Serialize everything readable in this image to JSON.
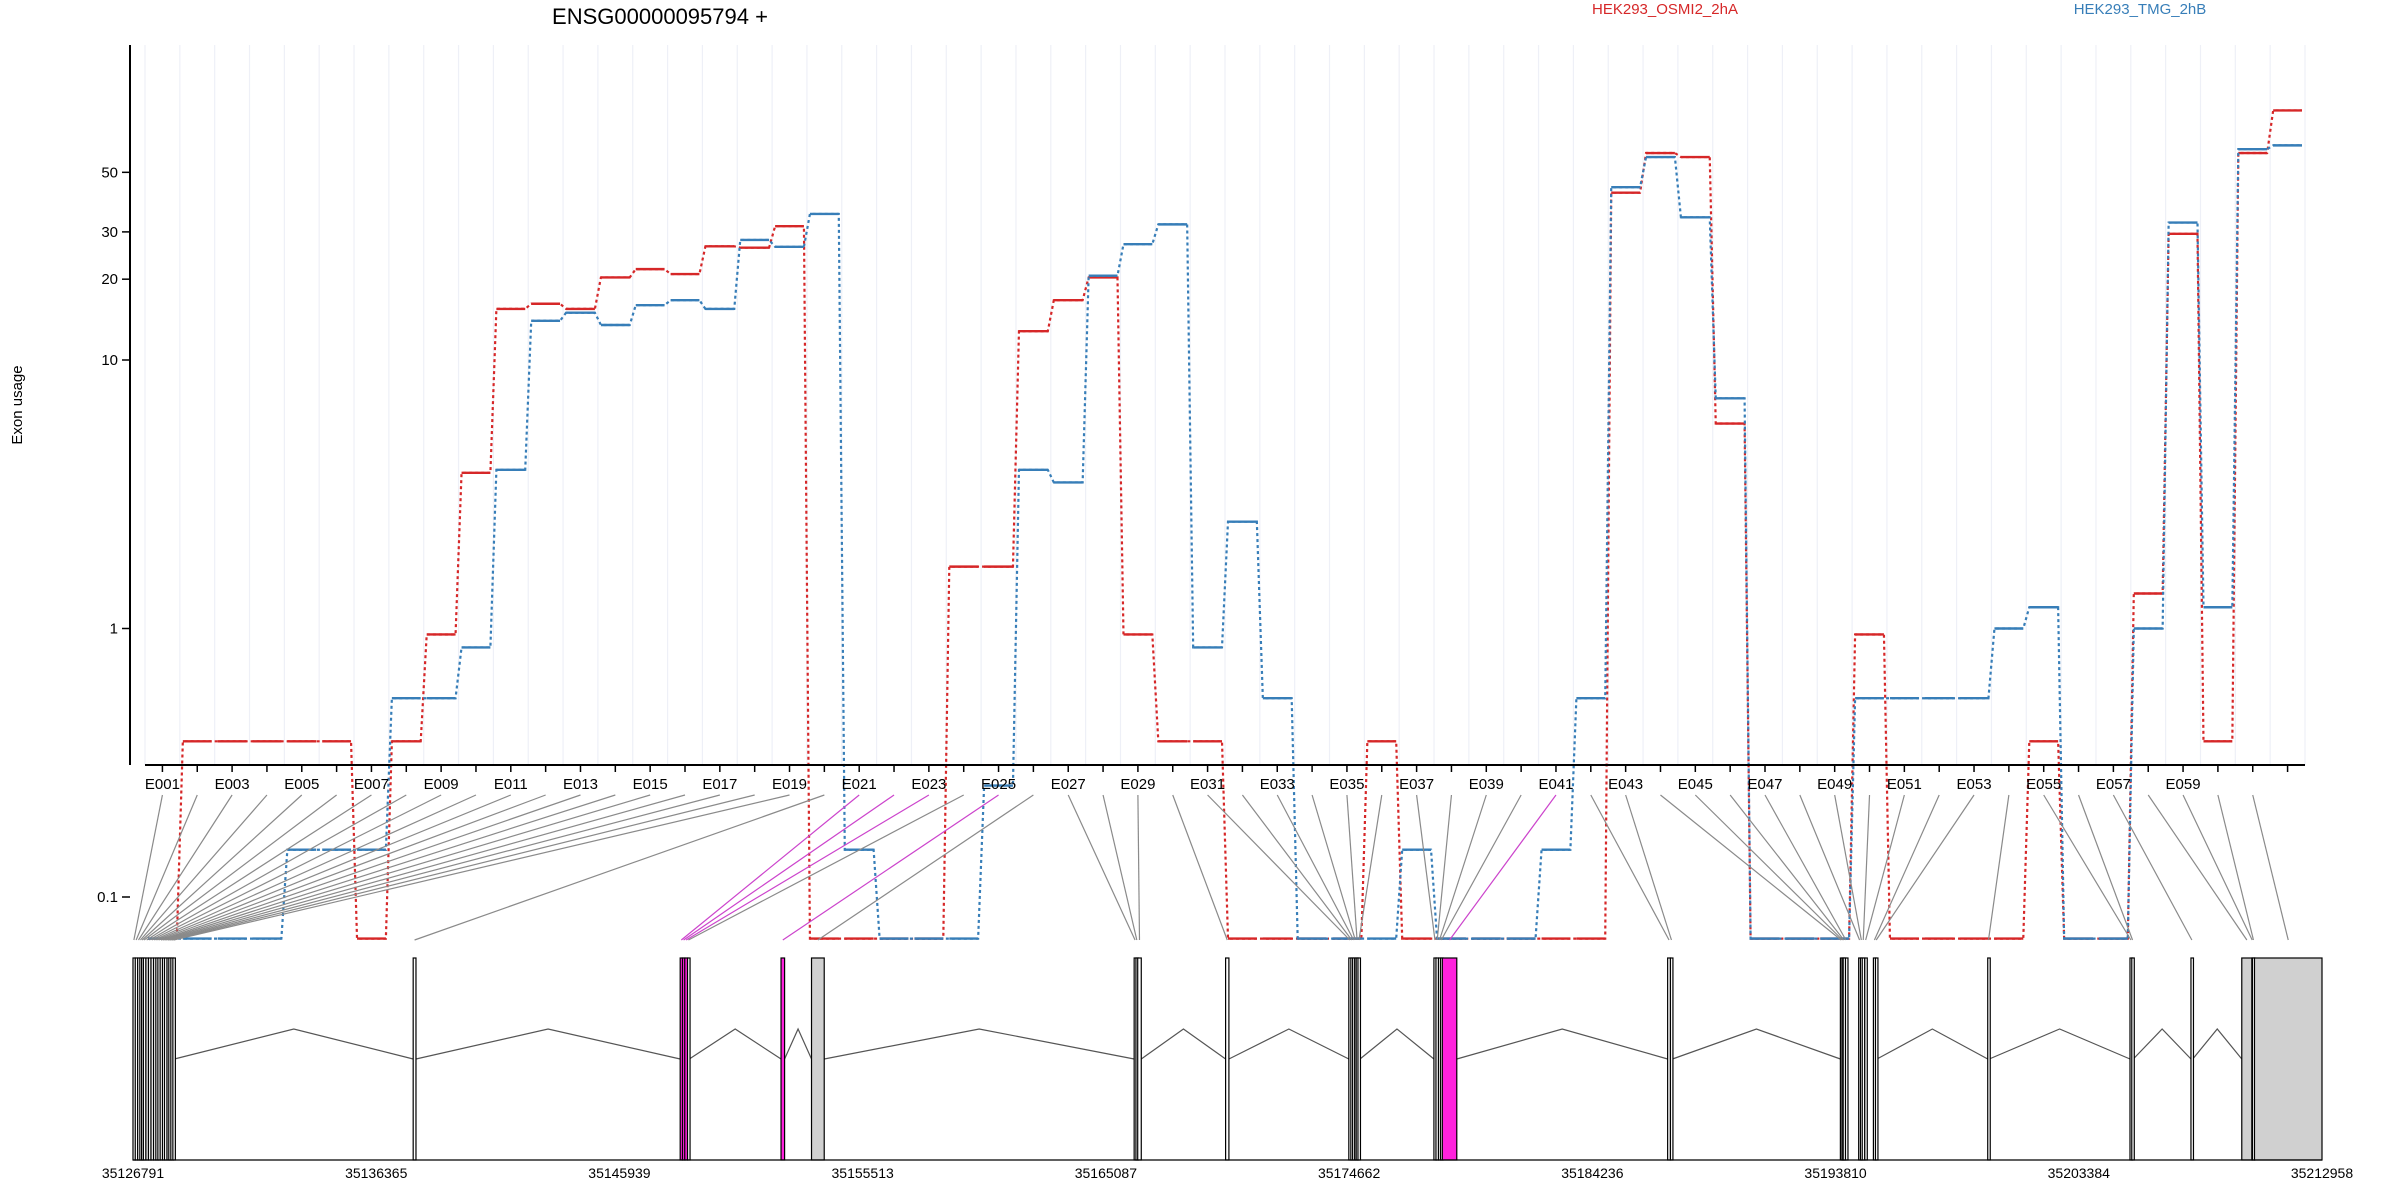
{
  "chart_data": {
    "type": "line",
    "title": "ENSG00000095794 +",
    "ylabel": "Exon usage",
    "xlabel": "",
    "yscale": "log",
    "ylim": [
      0.07,
      110
    ],
    "yticks": [
      0.1,
      1,
      10,
      20,
      30,
      50
    ],
    "ytick_labels": [
      "0.1",
      "1",
      "10",
      "20",
      "30",
      "50"
    ],
    "grid": true,
    "legend": "top-right",
    "colors": {
      "osmi": "#d62728",
      "tmg": "#377eb8",
      "highlight": "#ff22dd",
      "exon_fill": "#d0d0d0"
    },
    "exon_labels_shown": [
      "E001",
      "E003",
      "E005",
      "E007",
      "E009",
      "E011",
      "E013",
      "E015",
      "E017",
      "E019",
      "E021",
      "E023",
      "E025",
      "E027",
      "E029",
      "E031",
      "E033",
      "E035",
      "E037",
      "E039",
      "E041",
      "E043",
      "E045",
      "E047",
      "E049",
      "E051",
      "E053",
      "E055",
      "E057",
      "E059"
    ],
    "series": [
      {
        "name": "HEK293_OSMI2_2hA",
        "color": "#d62728",
        "values": [
          0.07,
          0.38,
          0.38,
          0.38,
          0.38,
          0.38,
          0.07,
          0.38,
          0.95,
          3.8,
          15.5,
          16.2,
          15.5,
          20.3,
          21.8,
          20.9,
          26.5,
          26.2,
          31.5,
          0.07,
          0.07,
          0.07,
          0.07,
          1.7,
          1.7,
          12.8,
          16.7,
          20.3,
          0.95,
          0.38,
          0.38,
          0.07,
          0.07,
          0.07,
          0.07,
          0.38,
          0.07,
          0.07,
          0.07,
          0.07,
          0.07,
          0.07,
          42,
          59,
          57,
          5.8,
          0.07,
          0.07,
          0.07,
          0.95,
          0.07,
          0.07,
          0.07,
          0.07,
          0.38,
          0.07,
          0.07,
          1.35,
          29.5,
          0.38,
          59,
          85
        ]
      },
      {
        "name": "HEK293_TMG_2hB",
        "color": "#377eb8",
        "values": [
          0.07,
          0.07,
          0.07,
          0.07,
          0.15,
          0.15,
          0.15,
          0.55,
          0.55,
          0.85,
          3.9,
          14,
          15,
          13.5,
          16,
          16.7,
          15.5,
          28,
          26.4,
          35,
          0.15,
          0.07,
          0.07,
          0.07,
          0.26,
          3.9,
          3.5,
          20.6,
          27,
          32,
          0.85,
          2.5,
          0.55,
          0.07,
          0.07,
          0.07,
          0.15,
          0.07,
          0.07,
          0.07,
          0.15,
          0.55,
          44,
          57,
          34,
          7.2,
          0.07,
          0.07,
          0.07,
          0.55,
          0.55,
          0.55,
          0.55,
          1,
          1.2,
          0.07,
          0.07,
          1,
          32.5,
          1.2,
          61,
          63
        ]
      }
    ],
    "gene_model": {
      "coord_labels": [
        "35126791",
        "35136365",
        "35145939",
        "35155513",
        "35165087",
        "35174662",
        "35184236",
        "35193810",
        "35203384",
        "35212958"
      ],
      "exons": [
        {
          "start": 35126791,
          "end": 35126860
        },
        {
          "start": 35126880,
          "end": 35126950
        },
        {
          "start": 35126975,
          "end": 35127040
        },
        {
          "start": 35127060,
          "end": 35127110
        },
        {
          "start": 35127130,
          "end": 35127180
        },
        {
          "start": 35127200,
          "end": 35127260
        },
        {
          "start": 35127300,
          "end": 35127360
        },
        {
          "start": 35127400,
          "end": 35127470
        },
        {
          "start": 35127500,
          "end": 35127560
        },
        {
          "start": 35127600,
          "end": 35127660
        },
        {
          "start": 35127690,
          "end": 35127740
        },
        {
          "start": 35127770,
          "end": 35127830
        },
        {
          "start": 35127860,
          "end": 35127930
        },
        {
          "start": 35127950,
          "end": 35128010
        },
        {
          "start": 35128030,
          "end": 35128100
        },
        {
          "start": 35128130,
          "end": 35128180
        },
        {
          "start": 35128200,
          "end": 35128260
        },
        {
          "start": 35128280,
          "end": 35128340
        },
        {
          "start": 35128360,
          "end": 35128420
        },
        {
          "start": 35137820,
          "end": 35137930
        },
        {
          "start": 35148330,
          "end": 35148420,
          "highlight": true
        },
        {
          "start": 35148420,
          "end": 35148510,
          "highlight": true
        },
        {
          "start": 35148510,
          "end": 35148620,
          "highlight": true
        },
        {
          "start": 35148620,
          "end": 35148690
        },
        {
          "start": 35152300,
          "end": 35152440,
          "highlight": true
        },
        {
          "start": 35153500,
          "end": 35154000,
          "fill": true
        },
        {
          "start": 35166200,
          "end": 35166270
        },
        {
          "start": 35166270,
          "end": 35166340
        },
        {
          "start": 35166340,
          "end": 35166480
        },
        {
          "start": 35169800,
          "end": 35169930
        },
        {
          "start": 35174650,
          "end": 35174730
        },
        {
          "start": 35174730,
          "end": 35174800
        },
        {
          "start": 35174800,
          "end": 35174880
        },
        {
          "start": 35174880,
          "end": 35174930
        },
        {
          "start": 35174940,
          "end": 35175010
        },
        {
          "start": 35175010,
          "end": 35175090
        },
        {
          "start": 35178000,
          "end": 35178080
        },
        {
          "start": 35178080,
          "end": 35178180
        },
        {
          "start": 35178180,
          "end": 35178260
        },
        {
          "start": 35178260,
          "end": 35178320
        },
        {
          "start": 35178330,
          "end": 35178900,
          "highlight": true
        },
        {
          "start": 35187200,
          "end": 35187310
        },
        {
          "start": 35187310,
          "end": 35187390
        },
        {
          "start": 35194000,
          "end": 35194060
        },
        {
          "start": 35194060,
          "end": 35194110
        },
        {
          "start": 35194110,
          "end": 35194160
        },
        {
          "start": 35194200,
          "end": 35194230
        },
        {
          "start": 35194720,
          "end": 35194790
        },
        {
          "start": 35194790,
          "end": 35194860
        },
        {
          "start": 35194860,
          "end": 35194940
        },
        {
          "start": 35194960,
          "end": 35195030
        },
        {
          "start": 35195300,
          "end": 35195380
        },
        {
          "start": 35195380,
          "end": 35195440
        },
        {
          "start": 35199800,
          "end": 35199860
        },
        {
          "start": 35205400,
          "end": 35205470
        },
        {
          "start": 35205470,
          "end": 35205530
        },
        {
          "start": 35207800,
          "end": 35207870
        },
        {
          "start": 35209800,
          "end": 35210200,
          "fill": true
        },
        {
          "start": 35210200,
          "end": 35210220
        },
        {
          "start": 35210220,
          "end": 35210300
        },
        {
          "start": 35210300,
          "end": 35212958,
          "fill": true
        }
      ]
    }
  }
}
